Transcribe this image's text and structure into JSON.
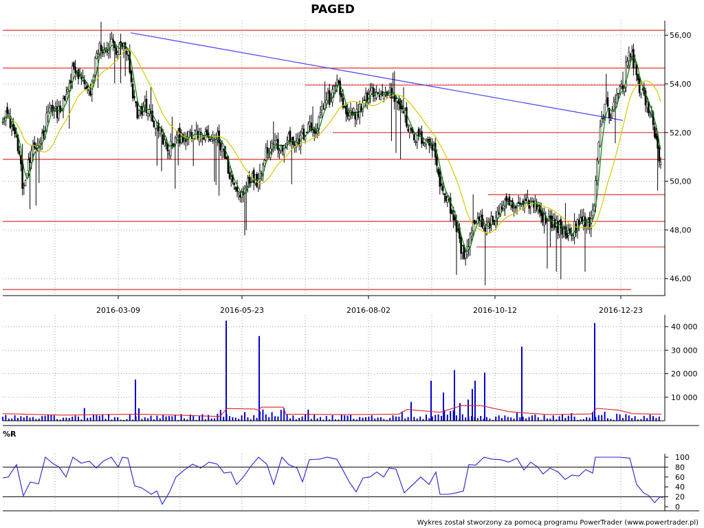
{
  "chart_data": [
    {
      "panel": "price",
      "type": "candlestick",
      "title": "PAGED",
      "x_dates": [
        "2016-03-09",
        "2016-05-23",
        "2016-08-02",
        "2016-10-12",
        "2016-12-23"
      ],
      "ylim": [
        45.3,
        56.6
      ],
      "y_ticks": [
        "46,00",
        "48,00",
        "50,00",
        "52,00",
        "54,00",
        "56,00"
      ],
      "grid": true,
      "colors": {
        "candle": "#000000",
        "ma_short": "#008000",
        "ma_long": "#d4c800",
        "support_resistance": "#e03030",
        "trend": "#4040ff"
      },
      "horizontal_levels": [
        56.2,
        54.65,
        53.95,
        52.0,
        50.9,
        49.45,
        48.35,
        47.3,
        45.55
      ],
      "trendline": {
        "from": [
          "2016-03-09",
          56.1
        ],
        "to": [
          "2016-12-23",
          52.5
        ]
      },
      "price_path": [
        [
          0,
          52.5
        ],
        [
          8,
          52.9
        ],
        [
          18,
          52.2
        ],
        [
          26,
          51.5
        ],
        [
          34,
          49.6
        ],
        [
          40,
          50.5
        ],
        [
          48,
          51.2
        ],
        [
          58,
          51.6
        ],
        [
          66,
          52.3
        ],
        [
          72,
          53.3
        ],
        [
          80,
          52.8
        ],
        [
          90,
          53.0
        ],
        [
          98,
          53.6
        ],
        [
          106,
          54.6
        ],
        [
          114,
          54.3
        ],
        [
          124,
          54.0
        ],
        [
          132,
          53.5
        ],
        [
          138,
          54.8
        ],
        [
          144,
          55.6
        ],
        [
          152,
          55.2
        ],
        [
          160,
          55.8
        ],
        [
          170,
          55.3
        ],
        [
          178,
          55.6
        ],
        [
          186,
          55.1
        ],
        [
          192,
          53.6
        ],
        [
          200,
          52.8
        ],
        [
          212,
          53.1
        ],
        [
          224,
          52.4
        ],
        [
          234,
          52.0
        ],
        [
          244,
          51.2
        ],
        [
          252,
          51.6
        ],
        [
          264,
          51.9
        ],
        [
          276,
          51.8
        ],
        [
          290,
          51.9
        ],
        [
          304,
          51.7
        ],
        [
          316,
          51.8
        ],
        [
          324,
          51.3
        ],
        [
          332,
          50.5
        ],
        [
          340,
          49.8
        ],
        [
          350,
          49.4
        ],
        [
          362,
          50.2
        ],
        [
          374,
          50.0
        ],
        [
          386,
          51.2
        ],
        [
          398,
          51.6
        ],
        [
          410,
          51.4
        ],
        [
          420,
          51.8
        ],
        [
          430,
          51.5
        ],
        [
          440,
          51.9
        ],
        [
          450,
          52.2
        ],
        [
          458,
          52.0
        ],
        [
          466,
          52.7
        ],
        [
          474,
          53.4
        ],
        [
          482,
          53.3
        ],
        [
          490,
          54.3
        ],
        [
          498,
          53.1
        ],
        [
          506,
          52.5
        ],
        [
          514,
          52.8
        ],
        [
          522,
          52.9
        ],
        [
          532,
          53.4
        ],
        [
          544,
          53.7
        ],
        [
          556,
          53.5
        ],
        [
          566,
          53.7
        ],
        [
          576,
          53.4
        ],
        [
          586,
          53.1
        ],
        [
          592,
          52.3
        ],
        [
          600,
          51.8
        ],
        [
          610,
          51.8
        ],
        [
          622,
          51.7
        ],
        [
          632,
          51.2
        ],
        [
          640,
          50.0
        ],
        [
          648,
          49.4
        ],
        [
          656,
          48.8
        ],
        [
          664,
          48.1
        ],
        [
          670,
          47.3
        ],
        [
          676,
          47.0
        ],
        [
          682,
          47.5
        ],
        [
          690,
          48.3
        ],
        [
          700,
          48.3
        ],
        [
          710,
          48.1
        ],
        [
          720,
          48.5
        ],
        [
          730,
          49.0
        ],
        [
          740,
          49.0
        ],
        [
          752,
          48.9
        ],
        [
          764,
          49.1
        ],
        [
          776,
          49.2
        ],
        [
          786,
          48.7
        ],
        [
          796,
          48.4
        ],
        [
          806,
          48.3
        ],
        [
          816,
          48.0
        ],
        [
          826,
          47.8
        ],
        [
          836,
          48.1
        ],
        [
          846,
          48.3
        ],
        [
          856,
          48.3
        ],
        [
          862,
          48.6
        ],
        [
          866,
          49.8
        ],
        [
          870,
          51.5
        ],
        [
          876,
          52.6
        ],
        [
          882,
          53.2
        ],
        [
          888,
          52.6
        ],
        [
          894,
          53.4
        ],
        [
          900,
          53.8
        ],
        [
          906,
          53.7
        ],
        [
          912,
          55.0
        ],
        [
          918,
          55.3
        ],
        [
          924,
          54.6
        ],
        [
          930,
          53.9
        ],
        [
          936,
          53.6
        ],
        [
          942,
          52.9
        ],
        [
          948,
          52.6
        ],
        [
          954,
          51.8
        ],
        [
          958,
          51.0
        ],
        [
          962,
          50.9
        ]
      ]
    },
    {
      "panel": "volume",
      "type": "bar",
      "ylim": [
        0,
        45000
      ],
      "y_ticks": [
        "10 000",
        "20 000",
        "30 000",
        "40 000"
      ],
      "grid": true,
      "colors": {
        "bars": "#0000cc",
        "average": "#e02020"
      },
      "spikes": [
        [
          197,
          17500
        ],
        [
          329,
          42500
        ],
        [
          377,
          36000
        ],
        [
          598,
          8000
        ],
        [
          627,
          17000
        ],
        [
          645,
          12000
        ],
        [
          661,
          21500
        ],
        [
          669,
          7500
        ],
        [
          681,
          9000
        ],
        [
          687,
          13500
        ],
        [
          691,
          17000
        ],
        [
          705,
          20500
        ],
        [
          759,
          31500
        ],
        [
          865,
          41500
        ]
      ],
      "average_path": [
        [
          4,
          3000
        ],
        [
          90,
          2400
        ],
        [
          200,
          2800
        ],
        [
          260,
          2400
        ],
        [
          320,
          1800
        ],
        [
          330,
          5200
        ],
        [
          370,
          5000
        ],
        [
          376,
          4500
        ],
        [
          380,
          5800
        ],
        [
          412,
          5800
        ],
        [
          416,
          2800
        ],
        [
          500,
          2600
        ],
        [
          580,
          2800
        ],
        [
          592,
          4800
        ],
        [
          640,
          3600
        ],
        [
          672,
          6500
        ],
        [
          700,
          6400
        ],
        [
          740,
          3900
        ],
        [
          760,
          3400
        ],
        [
          800,
          2600
        ],
        [
          860,
          2900
        ],
        [
          868,
          5300
        ],
        [
          900,
          4500
        ],
        [
          920,
          3000
        ],
        [
          962,
          2800
        ]
      ]
    },
    {
      "panel": "williams_r",
      "type": "line",
      "label": "%R",
      "ylim": [
        0,
        100
      ],
      "y_ticks": [
        "0",
        "20",
        "40",
        "60",
        "80",
        "100"
      ],
      "reference_levels": [
        20,
        80
      ],
      "grid": true,
      "colors": {
        "line": "#2020d0",
        "reference": "#000000"
      },
      "path": [
        [
          4,
          58
        ],
        [
          12,
          60
        ],
        [
          24,
          85
        ],
        [
          34,
          22
        ],
        [
          44,
          50
        ],
        [
          56,
          46
        ],
        [
          66,
          100
        ],
        [
          76,
          88
        ],
        [
          86,
          80
        ],
        [
          96,
          60
        ],
        [
          106,
          100
        ],
        [
          118,
          88
        ],
        [
          130,
          92
        ],
        [
          140,
          78
        ],
        [
          150,
          92
        ],
        [
          162,
          100
        ],
        [
          172,
          80
        ],
        [
          178,
          100
        ],
        [
          186,
          98
        ],
        [
          196,
          42
        ],
        [
          206,
          38
        ],
        [
          220,
          25
        ],
        [
          228,
          32
        ],
        [
          236,
          5
        ],
        [
          246,
          28
        ],
        [
          256,
          60
        ],
        [
          268,
          74
        ],
        [
          280,
          86
        ],
        [
          292,
          78
        ],
        [
          304,
          90
        ],
        [
          316,
          86
        ],
        [
          326,
          68
        ],
        [
          336,
          70
        ],
        [
          344,
          45
        ],
        [
          354,
          60
        ],
        [
          364,
          80
        ],
        [
          376,
          100
        ],
        [
          388,
          86
        ],
        [
          398,
          45
        ],
        [
          410,
          100
        ],
        [
          420,
          85
        ],
        [
          432,
          78
        ],
        [
          440,
          50
        ],
        [
          450,
          95
        ],
        [
          464,
          96
        ],
        [
          476,
          100
        ],
        [
          490,
          96
        ],
        [
          498,
          76
        ],
        [
          508,
          50
        ],
        [
          518,
          30
        ],
        [
          528,
          58
        ],
        [
          538,
          60
        ],
        [
          548,
          70
        ],
        [
          558,
          60
        ],
        [
          566,
          78
        ],
        [
          576,
          76
        ],
        [
          588,
          28
        ],
        [
          600,
          44
        ],
        [
          612,
          60
        ],
        [
          624,
          45
        ],
        [
          634,
          70
        ],
        [
          640,
          25
        ],
        [
          652,
          25
        ],
        [
          664,
          28
        ],
        [
          674,
          32
        ],
        [
          682,
          85
        ],
        [
          692,
          84
        ],
        [
          704,
          100
        ],
        [
          716,
          96
        ],
        [
          728,
          95
        ],
        [
          740,
          90
        ],
        [
          752,
          98
        ],
        [
          762,
          74
        ],
        [
          772,
          90
        ],
        [
          782,
          80
        ],
        [
          790,
          66
        ],
        [
          800,
          78
        ],
        [
          812,
          70
        ],
        [
          822,
          55
        ],
        [
          832,
          64
        ],
        [
          842,
          62
        ],
        [
          852,
          75
        ],
        [
          862,
          68
        ],
        [
          866,
          100
        ],
        [
          880,
          100
        ],
        [
          900,
          100
        ],
        [
          916,
          98
        ],
        [
          926,
          45
        ],
        [
          936,
          28
        ],
        [
          944,
          22
        ],
        [
          952,
          8
        ],
        [
          960,
          20
        ],
        [
          964,
          18
        ]
      ]
    }
  ],
  "footer": "Wykres został stworzony za pomocą programu PowerTrader (www.powertrader.pl)"
}
